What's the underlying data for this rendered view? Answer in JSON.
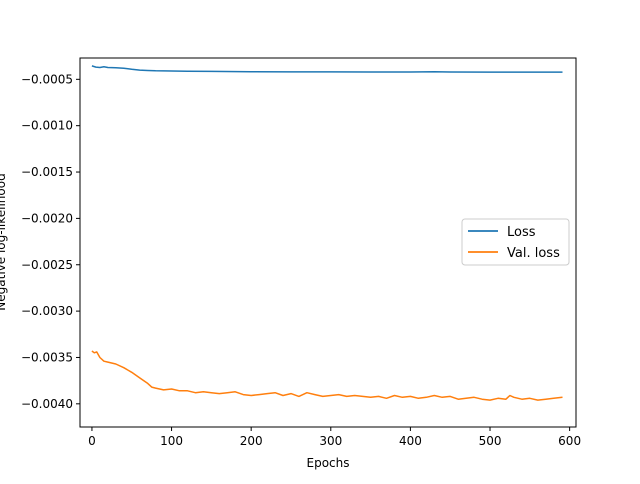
{
  "chart_data": {
    "type": "line",
    "title": "",
    "xlabel": "Epochs",
    "ylabel": "Negative log-likelihood",
    "xlim": [
      -15,
      608
    ],
    "ylim": [
      -0.00425,
      -0.00027
    ],
    "xticks": [
      0,
      100,
      200,
      300,
      400,
      500,
      600
    ],
    "yticks": [
      -0.0005,
      -0.001,
      -0.0015,
      -0.002,
      -0.0025,
      -0.003,
      -0.0035,
      -0.004
    ],
    "ytick_labels": [
      "−0.0005",
      "−0.0010",
      "−0.0015",
      "−0.0020",
      "−0.0025",
      "−0.0030",
      "−0.0035",
      "−0.0040"
    ],
    "grid": false,
    "legend_position": "center-right",
    "series": [
      {
        "name": "Loss",
        "color": "#1f77b4",
        "x": [
          0,
          5,
          10,
          15,
          20,
          30,
          40,
          50,
          60,
          70,
          80,
          100,
          120,
          150,
          200,
          250,
          300,
          350,
          400,
          430,
          450,
          500,
          550,
          591
        ],
        "y": [
          -0.000355,
          -0.000368,
          -0.000372,
          -0.000365,
          -0.000372,
          -0.000375,
          -0.00038,
          -0.000392,
          -0.0004,
          -0.000405,
          -0.000408,
          -0.00041,
          -0.000412,
          -0.000415,
          -0.000418,
          -0.00042,
          -0.00042,
          -0.000421,
          -0.000421,
          -0.000418,
          -0.000421,
          -0.000422,
          -0.000422,
          -0.000422
        ]
      },
      {
        "name": "Val. loss",
        "color": "#ff7f0e",
        "x": [
          0,
          3,
          6,
          10,
          15,
          20,
          30,
          40,
          50,
          60,
          70,
          75,
          80,
          90,
          100,
          110,
          120,
          130,
          140,
          150,
          160,
          170,
          180,
          190,
          200,
          210,
          220,
          230,
          240,
          250,
          260,
          270,
          280,
          290,
          300,
          310,
          320,
          330,
          340,
          350,
          360,
          370,
          380,
          390,
          400,
          410,
          420,
          430,
          440,
          450,
          460,
          470,
          480,
          490,
          500,
          510,
          520,
          525,
          530,
          540,
          550,
          560,
          570,
          580,
          591
        ],
        "y": [
          -0.00343,
          -0.00345,
          -0.00344,
          -0.0035,
          -0.00354,
          -0.00355,
          -0.00357,
          -0.00361,
          -0.00366,
          -0.00372,
          -0.00378,
          -0.00382,
          -0.00383,
          -0.00385,
          -0.00384,
          -0.00386,
          -0.00386,
          -0.00388,
          -0.00387,
          -0.00388,
          -0.00389,
          -0.00388,
          -0.00387,
          -0.0039,
          -0.00391,
          -0.0039,
          -0.00389,
          -0.00388,
          -0.00391,
          -0.00389,
          -0.00392,
          -0.00388,
          -0.0039,
          -0.00392,
          -0.00391,
          -0.0039,
          -0.00392,
          -0.00391,
          -0.00392,
          -0.00393,
          -0.00392,
          -0.00394,
          -0.00391,
          -0.00393,
          -0.00392,
          -0.00394,
          -0.00393,
          -0.00391,
          -0.00393,
          -0.00392,
          -0.00395,
          -0.00394,
          -0.00393,
          -0.00395,
          -0.00396,
          -0.00394,
          -0.00395,
          -0.00391,
          -0.00393,
          -0.00395,
          -0.00394,
          -0.00396,
          -0.00395,
          -0.00394,
          -0.00393
        ]
      }
    ]
  }
}
